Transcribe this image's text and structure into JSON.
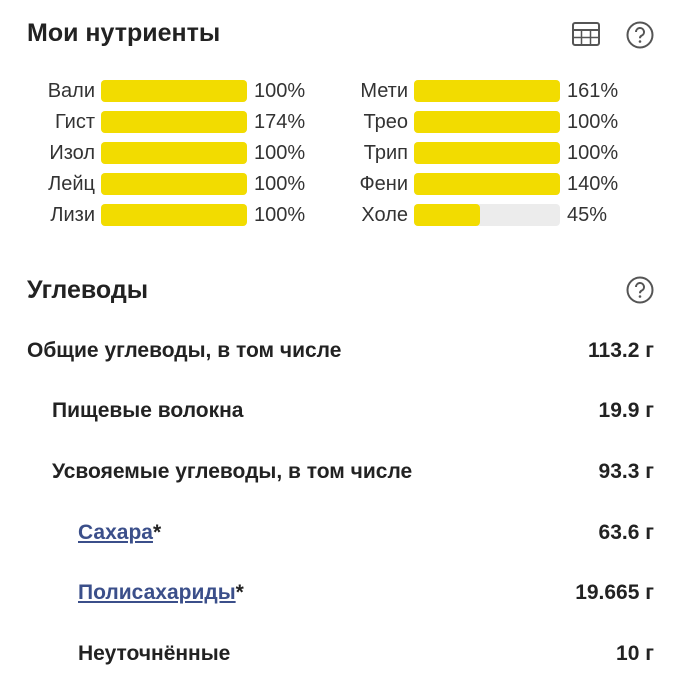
{
  "header": {
    "title": "Мои нутриенты"
  },
  "nutrients": {
    "bar_color": "#f2dc00",
    "track_color": "#ececec",
    "full_scale": 100,
    "columns": [
      [
        {
          "name": "Вали",
          "value": 100,
          "label": "100%"
        },
        {
          "name": "Гист",
          "value": 174,
          "label": "174%"
        },
        {
          "name": "Изол",
          "value": 100,
          "label": "100%"
        },
        {
          "name": "Лейц",
          "value": 100,
          "label": "100%"
        },
        {
          "name": "Лизи",
          "value": 100,
          "label": "100%"
        }
      ],
      [
        {
          "name": "Мети",
          "value": 161,
          "label": "161%"
        },
        {
          "name": "Трео",
          "value": 100,
          "label": "100%"
        },
        {
          "name": "Трип",
          "value": 100,
          "label": "100%"
        },
        {
          "name": "Фени",
          "value": 140,
          "label": "140%"
        },
        {
          "name": "Холе",
          "value": 45,
          "label": "45%"
        }
      ]
    ]
  },
  "carbs": {
    "title": "Углеводы",
    "rows": [
      {
        "label": "Общие углеводы, в том числе",
        "value": "113.2 г"
      },
      {
        "label": "Пищевые волокна",
        "value": "19.9 г"
      },
      {
        "label": "Усвояемые углеводы, в том числе",
        "value": "93.3 г"
      },
      {
        "label": "Сахара",
        "suffix": "*",
        "value": "63.6 г"
      },
      {
        "label": "Полисахариды",
        "suffix": "*",
        "value": "19.665 г"
      },
      {
        "label": "Неуточнённые",
        "value": "10 г"
      }
    ]
  }
}
